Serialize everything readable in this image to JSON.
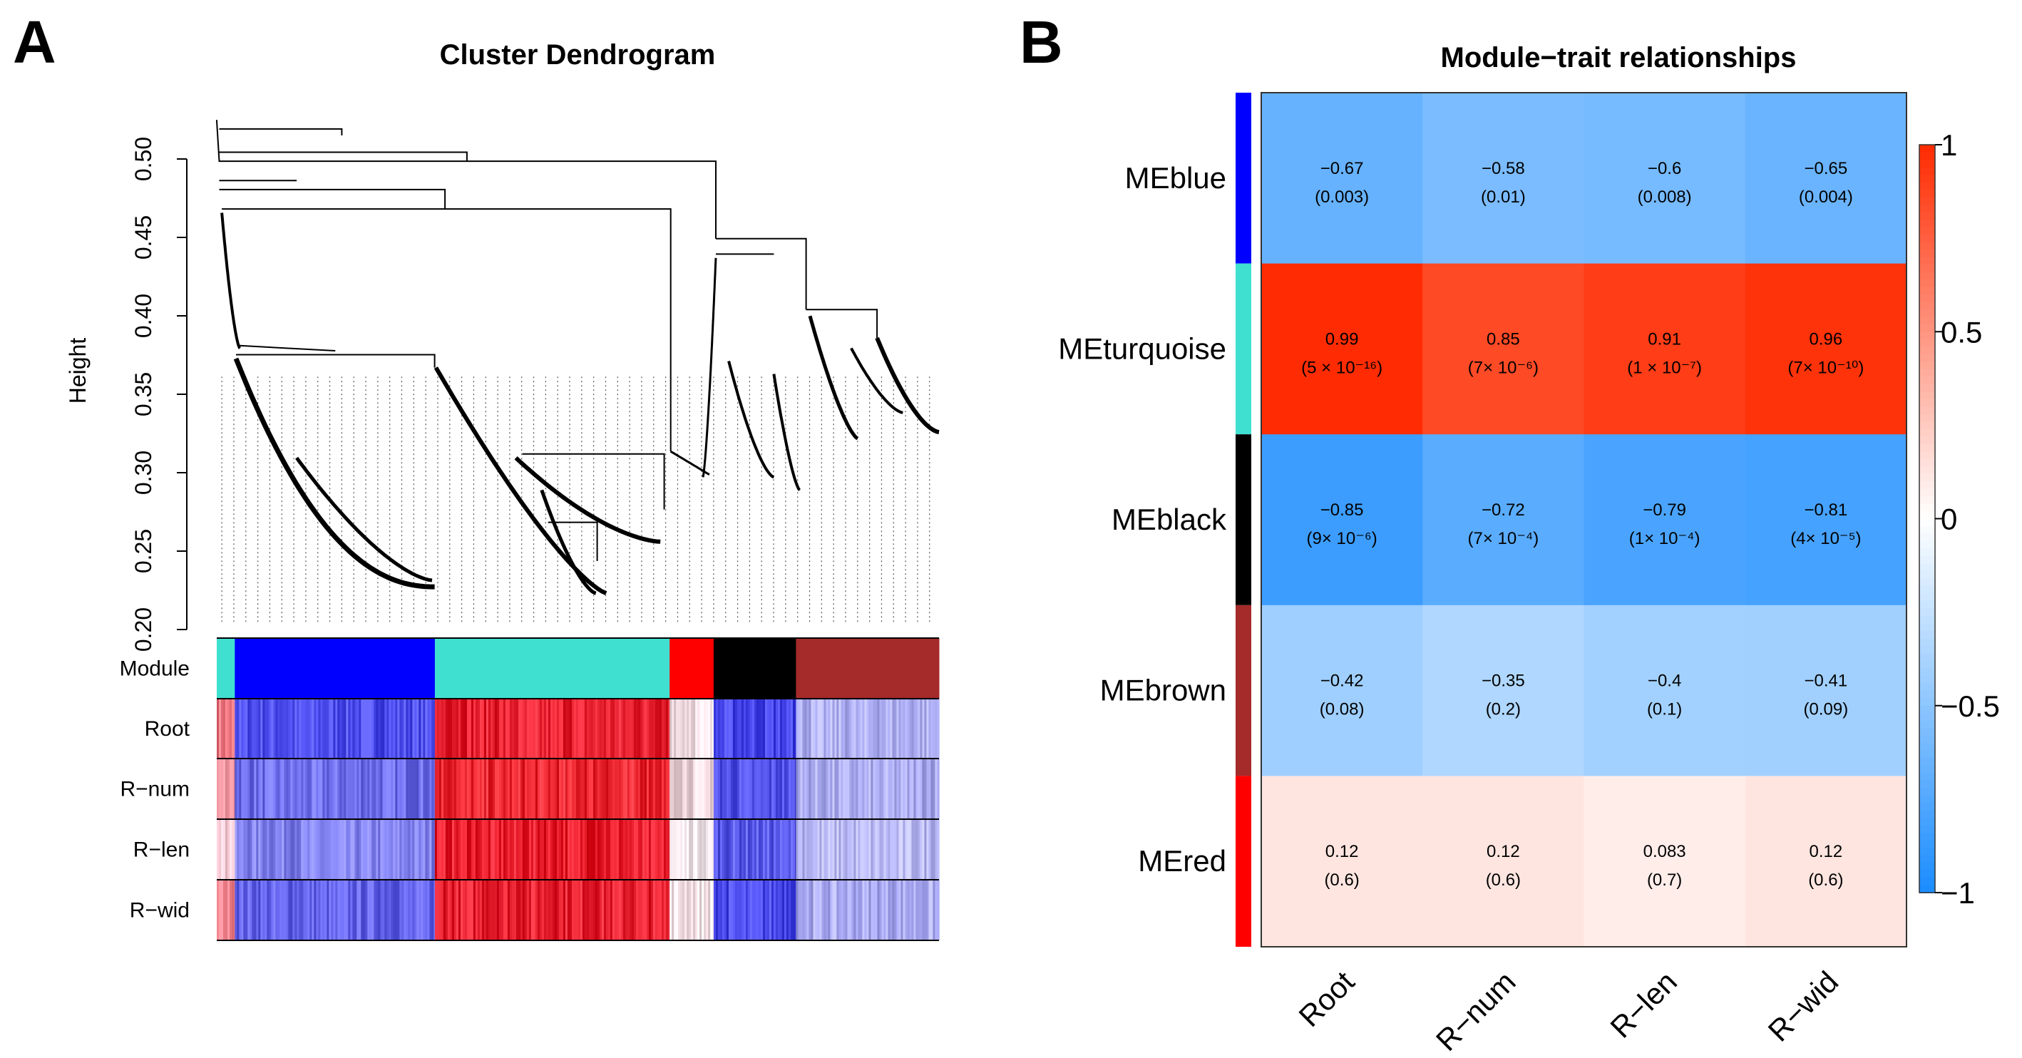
{
  "panels": {
    "a": "A",
    "b": "B"
  },
  "chart_data": [
    {
      "type": "dendrogram",
      "title": "Cluster Dendrogram",
      "ylabel": "Height",
      "ylim": [
        0.2,
        0.52
      ],
      "yticks": [
        "0.20",
        "0.25",
        "0.30",
        "0.35",
        "0.40",
        "0.45",
        "0.50"
      ],
      "colorbar_rows": [
        "Module",
        "Root",
        "R−num",
        "R−len",
        "R−wid"
      ],
      "modules": [
        {
          "name": "turquoise",
          "color": "#40e0d0",
          "fraction": 0.025
        },
        {
          "name": "blue",
          "color": "#0000ff",
          "fraction": 0.277
        },
        {
          "name": "turquoise",
          "color": "#40e0d0",
          "fraction": 0.325
        },
        {
          "name": "red",
          "color": "#ff0000",
          "fraction": 0.061
        },
        {
          "name": "black",
          "color": "#000000",
          "fraction": 0.114
        },
        {
          "name": "brown",
          "color": "#a52a2a",
          "fraction": 0.198
        }
      ]
    },
    {
      "type": "heatmap",
      "title": "Module−trait relationships",
      "rows": [
        "MEblue",
        "MEturquoise",
        "MEblack",
        "MEbrown",
        "MEred"
      ],
      "row_colors": [
        "#0000ff",
        "#40e0d0",
        "#000000",
        "#a52a2a",
        "#ff0000"
      ],
      "columns": [
        "Root",
        "R−num",
        "R−len",
        "R−wid"
      ],
      "values": [
        [
          -0.67,
          -0.58,
          -0.6,
          -0.65
        ],
        [
          0.99,
          0.85,
          0.91,
          0.96
        ],
        [
          -0.85,
          -0.72,
          -0.79,
          -0.81
        ],
        [
          -0.42,
          -0.35,
          -0.4,
          -0.41
        ],
        [
          0.12,
          0.12,
          0.083,
          0.12
        ]
      ],
      "value_labels": [
        [
          "−0.67",
          "−0.58",
          "−0.6",
          "−0.65"
        ],
        [
          "0.99",
          "0.85",
          "0.91",
          "0.96"
        ],
        [
          "−0.85",
          "−0.72",
          "−0.79",
          "−0.81"
        ],
        [
          "−0.42",
          "−0.35",
          "−0.4",
          "−0.41"
        ],
        [
          "0.12",
          "0.12",
          "0.083",
          "0.12"
        ]
      ],
      "pvalues": [
        [
          "(0.003)",
          "(0.01)",
          "(0.008)",
          "(0.004)"
        ],
        [
          "(5 × 10⁻¹⁶)",
          "(7× 10⁻⁶)",
          "(1 × 10⁻⁷)",
          "(7× 10⁻¹⁰)"
        ],
        [
          "(9× 10⁻⁶)",
          "(7× 10⁻⁴)",
          "(1× 10⁻⁴)",
          "(4× 10⁻⁵)"
        ],
        [
          "(0.08)",
          "(0.2)",
          "(0.1)",
          "(0.09)"
        ],
        [
          "(0.6)",
          "(0.6)",
          "(0.7)",
          "(0.6)"
        ]
      ],
      "zlim": [
        -1,
        1
      ],
      "colorbar_ticks": [
        {
          "v": 1,
          "label": "1"
        },
        {
          "v": 0.5,
          "label": "0.5"
        },
        {
          "v": 0,
          "label": "0"
        },
        {
          "v": -0.5,
          "label": "−0.5"
        },
        {
          "v": -1,
          "label": "−1"
        }
      ],
      "colors": {
        "neg": "#1a8cff",
        "mid": "#ffffff",
        "pos": "#ff2a00"
      }
    }
  ]
}
